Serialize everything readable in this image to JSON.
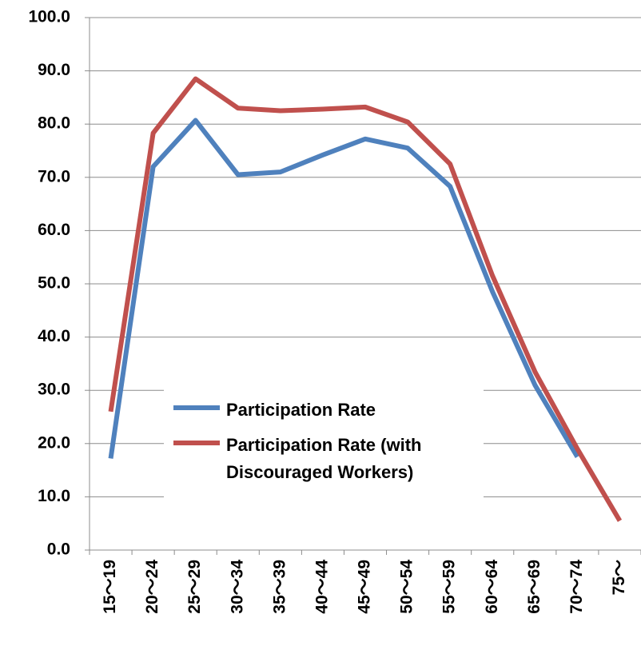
{
  "chart_data": {
    "type": "line",
    "categories": [
      "15～19",
      "20～24",
      "25～29",
      "30～34",
      "35～39",
      "40～44",
      "45～49",
      "50～54",
      "55～59",
      "60～64",
      "65～69",
      "70～74",
      "75～"
    ],
    "series": [
      {
        "name": "Participation Rate",
        "color": "#4f81bd",
        "values": [
          17.2,
          72,
          80.7,
          70.5,
          71,
          74.2,
          77.2,
          75.5,
          68.3,
          48.5,
          31,
          17.5,
          null
        ]
      },
      {
        "name": "Participation Rate (with Discouraged Workers)",
        "color": "#c0504d",
        "values": [
          26,
          78.3,
          88.5,
          83,
          82.5,
          82.8,
          83.2,
          80.4,
          72.5,
          51.5,
          33.5,
          19,
          5.5
        ]
      }
    ],
    "ylim": [
      0,
      100
    ],
    "yticks": [
      {
        "value": 0,
        "label": "0.0"
      },
      {
        "value": 10,
        "label": "10.0"
      },
      {
        "value": 20,
        "label": "20.0"
      },
      {
        "value": 30,
        "label": "30.0"
      },
      {
        "value": 40,
        "label": "40.0"
      },
      {
        "value": 50,
        "label": "50.0"
      },
      {
        "value": 60,
        "label": "60.0"
      },
      {
        "value": 70,
        "label": "70.0"
      },
      {
        "value": 80,
        "label": "80.0"
      },
      {
        "value": 90,
        "label": "90.0"
      },
      {
        "value": 100,
        "label": "100.0"
      }
    ],
    "grid": true
  }
}
